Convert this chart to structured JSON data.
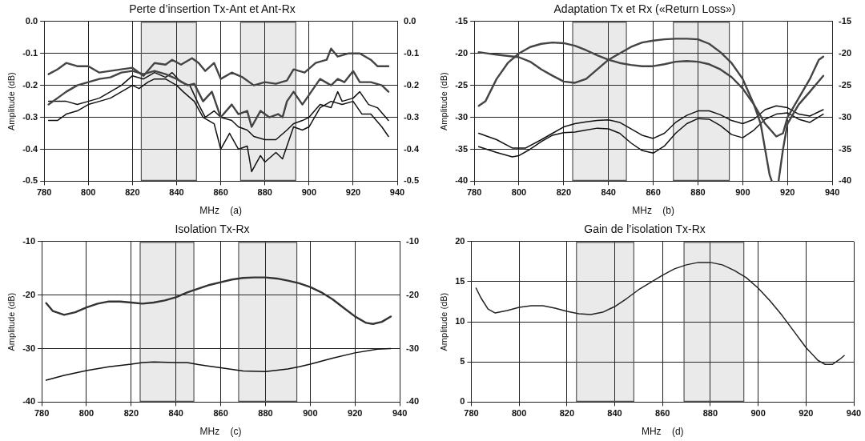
{
  "chart_data": [
    {
      "type": "line",
      "title": "Perte d’insertion Tx-Ant et Ant-Rx",
      "xlabel": "MHz    (a)",
      "ylabel": "Amplitude (dB)",
      "xlim": [
        780,
        940
      ],
      "xticks": [
        780,
        800,
        820,
        840,
        860,
        880,
        900,
        920,
        940
      ],
      "ylim": [
        -0.5,
        0
      ],
      "yticks": [
        -0.5,
        -0.4,
        -0.3,
        -0.2,
        -0.1,
        {
          "value": 0,
          "label": "0.0"
        }
      ],
      "y2lim": [
        -0.5,
        0
      ],
      "y2ticks": [
        -0.5,
        -0.4,
        -0.3,
        -0.2,
        -0.1,
        {
          "value": 0,
          "label": "0.0"
        }
      ],
      "grid": true,
      "legend": false,
      "marker": "none",
      "line_style": "solid",
      "bands": [
        {
          "axis": "x",
          "from": 824,
          "to": 849,
          "color": "#555555"
        },
        {
          "axis": "x",
          "from": 869,
          "to": 894,
          "color": "#555555"
        }
      ],
      "series": [
        {
          "color": "#444444",
          "x": [
            782,
            786,
            790,
            795,
            800,
            805,
            810,
            815,
            820,
            825,
            830,
            835,
            838,
            842,
            847,
            850,
            853,
            857,
            860,
            865,
            870,
            875,
            880,
            885,
            890,
            893,
            898,
            903,
            908,
            910,
            913,
            918,
            923,
            928,
            931,
            936
          ],
          "values": [
            -0.165,
            -0.15,
            -0.13,
            -0.14,
            -0.14,
            -0.16,
            -0.155,
            -0.15,
            -0.145,
            -0.17,
            -0.13,
            -0.135,
            -0.12,
            -0.135,
            -0.115,
            -0.13,
            -0.155,
            -0.13,
            -0.18,
            -0.16,
            -0.175,
            -0.2,
            -0.19,
            -0.195,
            -0.185,
            -0.15,
            -0.16,
            -0.13,
            -0.12,
            -0.085,
            -0.11,
            -0.1,
            -0.1,
            -0.12,
            -0.14,
            -0.14
          ]
        },
        {
          "color": "#444444",
          "x": [
            782,
            786,
            790,
            795,
            800,
            805,
            810,
            815,
            820,
            825,
            830,
            835,
            840,
            845,
            848,
            852,
            856,
            860,
            865,
            868,
            872,
            874,
            878,
            882,
            886,
            888,
            890,
            893,
            897,
            900,
            905,
            910,
            913,
            916,
            920,
            923,
            928,
            933,
            936
          ],
          "values": [
            -0.26,
            -0.24,
            -0.22,
            -0.2,
            -0.19,
            -0.18,
            -0.175,
            -0.16,
            -0.155,
            -0.165,
            -0.155,
            -0.165,
            -0.18,
            -0.2,
            -0.195,
            -0.25,
            -0.22,
            -0.3,
            -0.26,
            -0.29,
            -0.28,
            -0.33,
            -0.28,
            -0.3,
            -0.29,
            -0.3,
            -0.25,
            -0.22,
            -0.26,
            -0.23,
            -0.18,
            -0.2,
            -0.18,
            -0.19,
            -0.155,
            -0.19,
            -0.19,
            -0.2,
            -0.22
          ]
        },
        {
          "color": "#111111",
          "x": [
            782,
            790,
            795,
            800,
            805,
            810,
            815,
            820,
            825,
            830,
            835,
            838,
            842,
            846,
            850,
            853,
            857,
            860,
            865,
            868,
            872,
            875,
            880,
            885,
            890,
            893,
            897,
            900,
            905,
            910,
            913,
            915,
            920,
            923,
            927,
            931,
            936
          ],
          "values": [
            -0.25,
            -0.25,
            -0.26,
            -0.25,
            -0.24,
            -0.22,
            -0.2,
            -0.17,
            -0.18,
            -0.16,
            -0.175,
            -0.16,
            -0.19,
            -0.2,
            -0.26,
            -0.3,
            -0.28,
            -0.3,
            -0.31,
            -0.33,
            -0.34,
            -0.36,
            -0.37,
            -0.37,
            -0.34,
            -0.32,
            -0.31,
            -0.3,
            -0.26,
            -0.27,
            -0.22,
            -0.25,
            -0.24,
            -0.22,
            -0.26,
            -0.27,
            -0.31
          ]
        },
        {
          "color": "#111111",
          "x": [
            782,
            786,
            790,
            795,
            800,
            805,
            810,
            815,
            820,
            823,
            827,
            830,
            835,
            840,
            843,
            848,
            852,
            857,
            860,
            864,
            868,
            872,
            874,
            878,
            880,
            885,
            888,
            893,
            897,
            900,
            905,
            910,
            915,
            920,
            924,
            928,
            933,
            936
          ],
          "values": [
            -0.31,
            -0.31,
            -0.29,
            -0.28,
            -0.26,
            -0.25,
            -0.24,
            -0.22,
            -0.2,
            -0.21,
            -0.19,
            -0.18,
            -0.18,
            -0.2,
            -0.22,
            -0.25,
            -0.3,
            -0.32,
            -0.4,
            -0.35,
            -0.4,
            -0.39,
            -0.47,
            -0.42,
            -0.44,
            -0.41,
            -0.43,
            -0.33,
            -0.34,
            -0.33,
            -0.27,
            -0.25,
            -0.26,
            -0.25,
            -0.29,
            -0.29,
            -0.33,
            -0.36
          ]
        }
      ]
    },
    {
      "type": "line",
      "title": "Adaptation Tx et Rx («Return Loss»)",
      "xlabel": "MHz    (b)",
      "ylabel": "Amplitude (dB)",
      "xlim": [
        780,
        940
      ],
      "xticks": [
        780,
        800,
        820,
        840,
        860,
        880,
        900,
        920,
        940
      ],
      "ylim": [
        -40,
        -15
      ],
      "yticks": [
        -40,
        -35,
        -30,
        -25,
        -20,
        -15
      ],
      "y2lim": [
        -40,
        -15
      ],
      "y2ticks": [
        -40,
        -35,
        -30,
        -25,
        -20,
        -15
      ],
      "grid": true,
      "legend": false,
      "marker": "none",
      "line_style": "solid",
      "bands": [
        {
          "axis": "x",
          "from": 824,
          "to": 848,
          "color": "#555555"
        },
        {
          "axis": "x",
          "from": 869,
          "to": 894,
          "color": "#555555"
        }
      ],
      "series": [
        {
          "color": "#444444",
          "x": [
            782,
            785,
            790,
            795,
            800,
            805,
            810,
            815,
            820,
            825,
            830,
            835,
            840,
            845,
            850,
            855,
            860,
            865,
            870,
            875,
            880,
            885,
            890,
            895,
            900,
            905,
            910,
            915,
            918,
            920,
            925,
            930,
            934,
            936
          ],
          "values": [
            -28.2,
            -27.5,
            -24,
            -21.5,
            -20,
            -19,
            -18.5,
            -18.3,
            -18.4,
            -18.8,
            -19.5,
            -20.3,
            -21,
            -21.5,
            -21.8,
            -22,
            -22,
            -21.7,
            -21.3,
            -21.2,
            -21.3,
            -21.7,
            -22.5,
            -23.7,
            -25.5,
            -28,
            -31,
            -33,
            -32.5,
            -30,
            -27,
            -24,
            -21,
            -20.5
          ]
        },
        {
          "color": "#444444",
          "x": [
            782,
            790,
            800,
            805,
            810,
            815,
            820,
            825,
            830,
            835,
            840,
            845,
            850,
            855,
            860,
            865,
            870,
            875,
            880,
            885,
            890,
            895,
            900,
            905,
            908,
            910,
            912,
            913,
            914.5,
            916,
            918,
            920,
            925,
            930,
            936
          ],
          "values": [
            -19.8,
            -20.2,
            -20.6,
            -21.3,
            -22.5,
            -23.5,
            -24.4,
            -24.6,
            -24,
            -22.5,
            -21,
            -20,
            -19,
            -18.3,
            -18,
            -17.8,
            -17.7,
            -17.7,
            -17.8,
            -18.5,
            -19.8,
            -21.5,
            -24,
            -28,
            -31,
            -35,
            -39,
            -40,
            null,
            -40,
            -35,
            -31,
            -28,
            -26,
            -23.5
          ]
        },
        {
          "color": "#111111",
          "x": [
            782,
            790,
            797,
            803,
            810,
            815,
            820,
            825,
            830,
            835,
            840,
            845,
            850,
            855,
            860,
            865,
            870,
            875,
            880,
            885,
            890,
            895,
            900,
            905,
            910,
            915,
            920,
            925,
            930,
            936
          ],
          "values": [
            -32.5,
            -33.5,
            -34.8,
            -34.8,
            -33.5,
            -32.5,
            -31.5,
            -31,
            -30.7,
            -30.5,
            -30.4,
            -30.8,
            -31.8,
            -32.8,
            -33.3,
            -32.5,
            -30.8,
            -29.7,
            -29,
            -29,
            -29.6,
            -30.5,
            -31,
            -30.3,
            -28.8,
            -28.2,
            -28.5,
            -29.5,
            -29.8,
            -28.8
          ]
        },
        {
          "color": "#111111",
          "x": [
            782,
            790,
            797,
            800,
            805,
            810,
            815,
            820,
            825,
            830,
            835,
            840,
            845,
            850,
            855,
            860,
            865,
            870,
            875,
            880,
            885,
            890,
            895,
            900,
            905,
            910,
            915,
            920,
            925,
            930,
            936
          ],
          "values": [
            -34.6,
            -35.5,
            -36.2,
            -36,
            -35,
            -33.8,
            -32.8,
            -32.4,
            -32.3,
            -32,
            -31.7,
            -31.8,
            -32.5,
            -34,
            -35.2,
            -35.6,
            -34.5,
            -32.5,
            -31,
            -30.2,
            -30.3,
            -31.3,
            -32.7,
            -33.2,
            -32,
            -30.3,
            -29.5,
            -29.3,
            -30.3,
            -30.8,
            -29.5
          ]
        }
      ]
    },
    {
      "type": "line",
      "title": "Isolation Tx-Rx",
      "xlabel": "MHz    (c)",
      "ylabel": "Amplitude (dB)",
      "xlim": [
        780,
        940
      ],
      "xticks": [
        780,
        800,
        820,
        840,
        860,
        880,
        900,
        920,
        940
      ],
      "ylim": [
        -40,
        -10
      ],
      "yticks": [
        -40,
        -30,
        -20,
        -10
      ],
      "y2lim": [
        -40,
        -10
      ],
      "y2ticks": [
        -40,
        -30,
        -20,
        -10
      ],
      "grid": true,
      "legend": false,
      "marker": "none",
      "line_style": "solid",
      "bands": [
        {
          "axis": "x",
          "from": 824,
          "to": 848,
          "color": "#555555"
        },
        {
          "axis": "x",
          "from": 868,
          "to": 894,
          "color": "#555555"
        }
      ],
      "series": [
        {
          "color": "#333333",
          "x": [
            782,
            785,
            790,
            795,
            800,
            805,
            810,
            815,
            820,
            825,
            830,
            835,
            840,
            845,
            850,
            855,
            860,
            865,
            870,
            875,
            880,
            885,
            890,
            895,
            900,
            905,
            910,
            915,
            920,
            925,
            928,
            932,
            936
          ],
          "values": [
            -21.5,
            -23,
            -23.7,
            -23.2,
            -22.3,
            -21.6,
            -21.2,
            -21.2,
            -21.4,
            -21.6,
            -21.4,
            -21,
            -20.4,
            -19.5,
            -18.8,
            -18.1,
            -17.6,
            -17.1,
            -16.8,
            -16.7,
            -16.7,
            -16.9,
            -17.3,
            -17.8,
            -18.5,
            -19.5,
            -20.8,
            -22.4,
            -24,
            -25.2,
            -25.4,
            -25,
            -24
          ]
        },
        {
          "color": "#111111",
          "x": [
            782,
            790,
            800,
            810,
            820,
            825,
            830,
            840,
            845,
            850,
            860,
            870,
            880,
            890,
            895,
            900,
            910,
            920,
            930,
            936
          ],
          "values": [
            -35.9,
            -35,
            -34.1,
            -33.4,
            -32.9,
            -32.6,
            -32.5,
            -32.6,
            -32.6,
            -33,
            -33.6,
            -34.2,
            -34.3,
            -33.8,
            -33.4,
            -32.9,
            -31.8,
            -30.8,
            -30.1,
            -30
          ]
        }
      ]
    },
    {
      "type": "line",
      "title": "Gain de l’isolation Tx-Rx",
      "xlabel": "MHz    (d)",
      "ylabel": "Amplitude (dB)",
      "xlim": [
        780,
        940
      ],
      "xticks": [
        780,
        800,
        820,
        840,
        860,
        880,
        900,
        920,
        940
      ],
      "ylim": [
        0,
        20
      ],
      "yticks": [
        0,
        5,
        10,
        15,
        20
      ],
      "grid": true,
      "legend": false,
      "marker": "none",
      "line_style": "solid",
      "bands": [
        {
          "axis": "x",
          "from": 824,
          "to": 848,
          "color": "#555555"
        },
        {
          "axis": "x",
          "from": 869,
          "to": 894,
          "color": "#555555"
        }
      ],
      "series": [
        {
          "color": "#222222",
          "x": [
            782,
            784,
            787,
            790,
            795,
            800,
            805,
            810,
            815,
            820,
            825,
            830,
            835,
            840,
            845,
            850,
            855,
            860,
            865,
            870,
            875,
            880,
            885,
            890,
            895,
            900,
            905,
            910,
            915,
            920,
            925,
            928,
            931,
            934,
            936
          ],
          "values": [
            14.2,
            13,
            11.6,
            11.1,
            11.4,
            11.8,
            12,
            12,
            11.7,
            11.3,
            11,
            10.9,
            11.2,
            11.9,
            12.9,
            14,
            14.9,
            15.8,
            16.6,
            17.1,
            17.4,
            17.4,
            17.1,
            16.4,
            15.5,
            14.2,
            12.6,
            10.8,
            8.8,
            6.8,
            5.2,
            4.7,
            4.7,
            5.3,
            5.8
          ]
        }
      ]
    }
  ]
}
